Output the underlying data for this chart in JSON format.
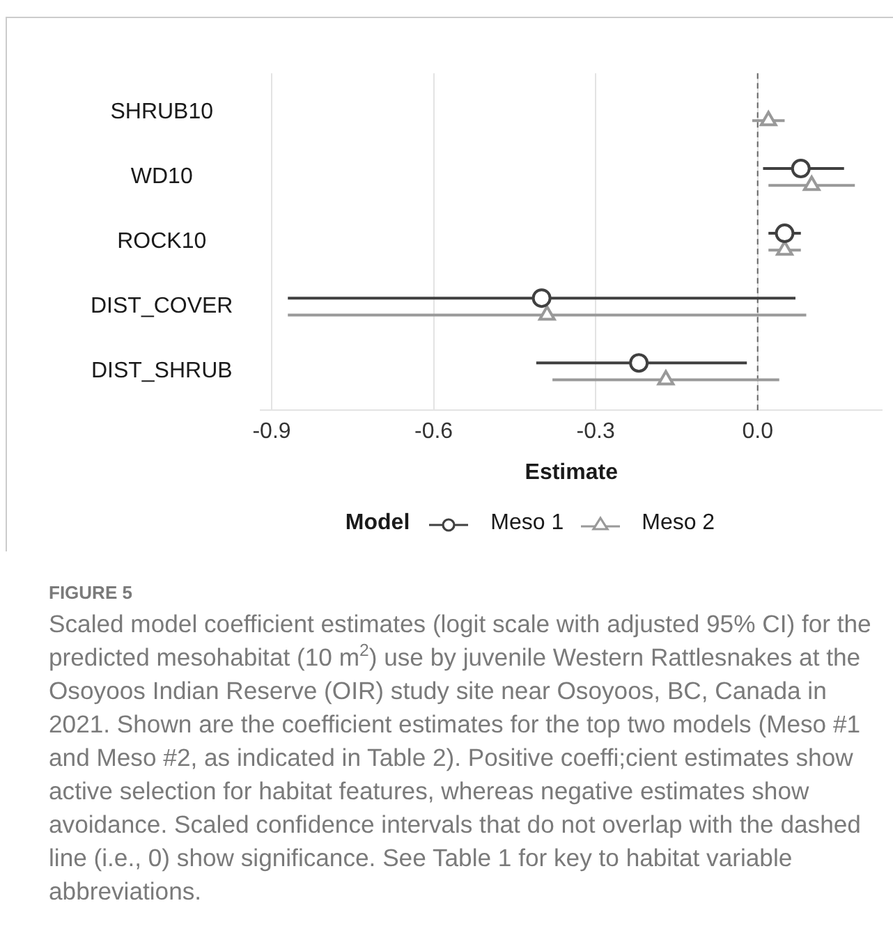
{
  "chart_data": {
    "type": "scatter",
    "orientation": "horizontal",
    "categories": [
      "SHRUB10",
      "WD10",
      "ROCK10",
      "DIST_COVER",
      "DIST_SHRUB"
    ],
    "xlabel": "Estimate",
    "legend_title": "Model",
    "legend": "bottom",
    "grid": "x",
    "xlim": [
      -0.92,
      0.23
    ],
    "xticks": [
      -0.9,
      -0.6,
      -0.3,
      {
        "value": 0,
        "label": "0.0"
      }
    ],
    "ref_lines": [
      {
        "axis": "x",
        "value": 0,
        "line_style": "dashed",
        "color": "#666666"
      }
    ],
    "series": [
      {
        "name": "Meso 1",
        "color": "#404040",
        "marker": "circle",
        "values": [
          null,
          0.08,
          0.05,
          -0.4,
          -0.22
        ],
        "errors": [
          null,
          [
            0.01,
            0.16
          ],
          [
            0.02,
            0.08
          ],
          [
            -0.87,
            0.07
          ],
          [
            -0.41,
            -0.02
          ]
        ]
      },
      {
        "name": "Meso 2",
        "color": "#999999",
        "marker": "triangle",
        "values": [
          0.02,
          0.1,
          0.05,
          -0.39,
          -0.17
        ],
        "errors": [
          [
            -0.01,
            0.05
          ],
          [
            0.02,
            0.18
          ],
          [
            0.02,
            0.08
          ],
          [
            -0.87,
            0.09
          ],
          [
            -0.38,
            0.04
          ]
        ]
      }
    ],
    "annotations": [
      "FIGURE 5",
      "Scaled model coefficient estimates (logit scale with adjusted 95% CI) for the predicted mesohabitat (10 m$^{2}$) use by juvenile Western Rattlesnakes at the Osoyoos Indian Reserve (OIR) study site near Osoyoos, BC, Canada in 2021. Shown are the coefficient estimates for the top two models (Meso #1 and Meso #2, as indicated in Table 2). Positive coeffi;cient estimates show active selection for habitat features, whereas negative estimates show avoidance. Scaled confidence intervals that do not overlap with the dashed line (i.e., 0) show significance. See Table 1 for key to habitat variable abbreviations."
    ]
  }
}
